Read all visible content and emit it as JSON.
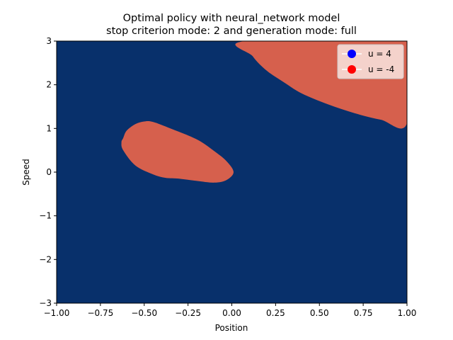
{
  "chart_data": {
    "type": "heatmap",
    "title": "Optimal policy with neural_network model",
    "subtitle": "stop criterion mode: 2 and generation mode: full",
    "xlabel": "Position",
    "ylabel": "Speed",
    "xlim": [
      -1.0,
      1.0
    ],
    "ylim": [
      -3,
      3
    ],
    "xticks": [
      "−1.00",
      "−0.75",
      "−0.50",
      "−0.25",
      "0.00",
      "0.25",
      "0.50",
      "0.75",
      "1.00"
    ],
    "yticks": [
      "−3",
      "−2",
      "−1",
      "0",
      "1",
      "2",
      "3"
    ],
    "background_class": "u = 4",
    "colors": {
      "u_pos": "#08306b",
      "u_neg": "#d6604d",
      "legend_u_pos": "#0000ff",
      "legend_u_neg": "#ff0000"
    },
    "legend": {
      "position": "upper right",
      "entries": [
        {
          "label": "u = 4",
          "color": "#0000ff"
        },
        {
          "label": "u = -4",
          "color": "#ff0000"
        }
      ]
    },
    "regions": [
      {
        "class": "u = -4",
        "boundary": [
          [
            -0.62,
            0.78
          ],
          [
            -0.6,
            0.95
          ],
          [
            -0.55,
            1.1
          ],
          [
            -0.5,
            1.16
          ],
          [
            -0.45,
            1.15
          ],
          [
            -0.35,
            1.0
          ],
          [
            -0.2,
            0.75
          ],
          [
            -0.1,
            0.48
          ],
          [
            -0.03,
            0.25
          ],
          [
            0.01,
            0.0
          ],
          [
            -0.03,
            -0.18
          ],
          [
            -0.1,
            -0.24
          ],
          [
            -0.2,
            -0.2
          ],
          [
            -0.3,
            -0.15
          ],
          [
            -0.38,
            -0.13
          ],
          [
            -0.45,
            -0.05
          ],
          [
            -0.55,
            0.15
          ],
          [
            -0.62,
            0.5
          ],
          [
            -0.63,
            0.68
          ]
        ]
      },
      {
        "class": "u = -4",
        "boundary": [
          [
            0.08,
            3.0
          ],
          [
            0.12,
            2.65
          ],
          [
            0.2,
            2.32
          ],
          [
            0.3,
            2.05
          ],
          [
            0.4,
            1.8
          ],
          [
            0.55,
            1.55
          ],
          [
            0.7,
            1.35
          ],
          [
            0.85,
            1.2
          ],
          [
            1.0,
            1.12
          ],
          [
            1.0,
            3.0
          ]
        ]
      }
    ]
  }
}
